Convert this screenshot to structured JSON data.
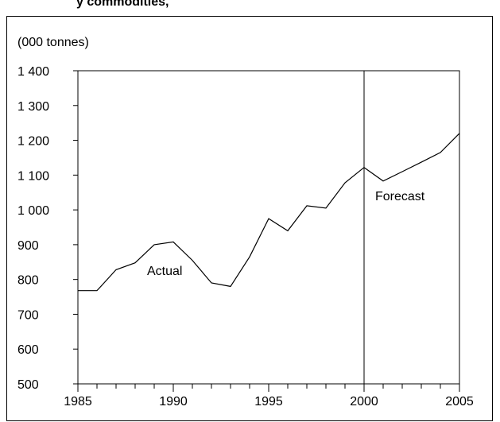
{
  "header": {
    "title_fragment": "y commodities, "
  },
  "chart_data": {
    "type": "line",
    "ylabel": "(000 tonnes)",
    "xlabel": "",
    "xlim": [
      1985,
      2005
    ],
    "ylim": [
      500,
      1400
    ],
    "xticks": [
      1985,
      1990,
      1995,
      2000,
      2005
    ],
    "yticks": [
      500,
      600,
      700,
      800,
      900,
      1000,
      1100,
      1200,
      1300,
      1400
    ],
    "ytick_labels": [
      "500",
      "600",
      "700",
      "800",
      "900",
      "1 000",
      "1 100",
      "1 200",
      "1 300",
      "1 400"
    ],
    "divider_x": 2000,
    "series": [
      {
        "name": "Actual",
        "x": [
          1985,
          1986,
          1987,
          1988,
          1989,
          1990,
          1991,
          1992,
          1993,
          1994,
          1995,
          1996,
          1997,
          1998,
          1999,
          2000
        ],
        "values": [
          768,
          768,
          828,
          848,
          900,
          908,
          855,
          790,
          780,
          865,
          975,
          940,
          1012,
          1005,
          1078,
          1122
        ]
      },
      {
        "name": "Forecast",
        "x": [
          2000,
          2001,
          2002,
          2003,
          2004,
          2005
        ],
        "values": [
          1122,
          1083,
          1110,
          1137,
          1165,
          1220
        ]
      }
    ],
    "annotations": [
      "Actual",
      "Forecast"
    ],
    "grid": false,
    "legend": "none"
  }
}
